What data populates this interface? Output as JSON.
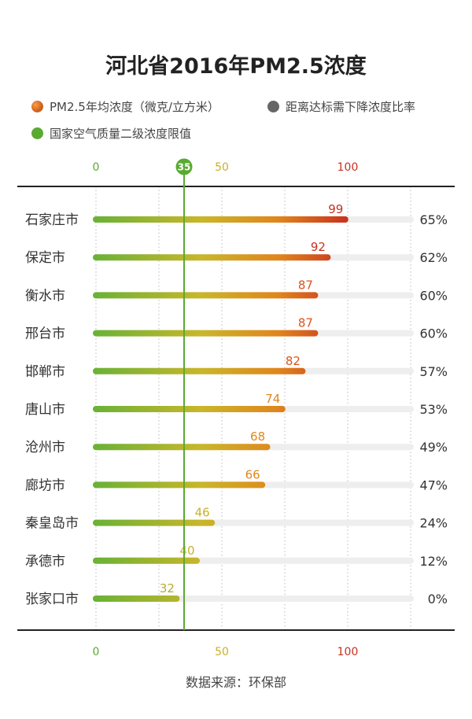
{
  "title": "河北省2016年PM2.5浓度",
  "legend": {
    "pm25": "PM2.5年均浓度（微克/立方米）",
    "ratio": "距离达标需下降浓度比率",
    "limit": "国家空气质量二级浓度限值"
  },
  "source": "数据来源：环保部",
  "colors": {
    "green": "#5aaa32",
    "yellow": "#c9b12a",
    "orange": "#e08a1c",
    "red": "#c8311f",
    "track": "#eeeeee",
    "ratio_dot": "#666666"
  },
  "chart_data": {
    "type": "bar",
    "categories": [
      "石家庄市",
      "保定市",
      "衡水市",
      "邢台市",
      "邯郸市",
      "唐山市",
      "沧州市",
      "廊坊市",
      "秦皇岛市",
      "承德市",
      "张家口市"
    ],
    "values": [
      99,
      92,
      87,
      87,
      82,
      74,
      68,
      66,
      46,
      40,
      32
    ],
    "reduction_ratio": [
      "65%",
      "62%",
      "60%",
      "60%",
      "57%",
      "53%",
      "49%",
      "47%",
      "24%",
      "12%",
      "0%"
    ],
    "limit": 35,
    "limit_label": "35",
    "xlim": [
      0,
      125
    ],
    "ticks": [
      0,
      50,
      100
    ],
    "tick_labels": [
      "0",
      "50",
      "100"
    ],
    "grid": true,
    "legend_position": "top-left"
  }
}
